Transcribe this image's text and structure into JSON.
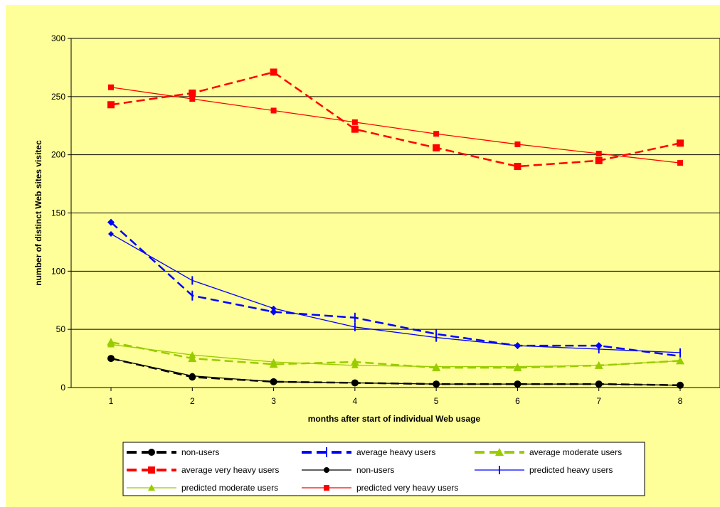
{
  "chart_data": {
    "type": "line",
    "title": "",
    "xlabel": "months after start of individual Web usage",
    "ylabel": "number of distinct Web sites visitec",
    "x": [
      1,
      2,
      3,
      4,
      5,
      6,
      7,
      8
    ],
    "x_ticks": [
      "1",
      "2",
      "3",
      "4",
      "5",
      "6",
      "7",
      "8"
    ],
    "ylim": [
      0,
      300
    ],
    "y_ticks": [
      "0",
      "50",
      "100",
      "150",
      "200",
      "250",
      "300"
    ],
    "grid": "horizontal",
    "legend_position": "bottom",
    "plot_background": "#ffff99",
    "series": [
      {
        "name": "non-users",
        "color": "#000000",
        "style": "dashed",
        "marker": "circle",
        "values": [
          25,
          9,
          5,
          4,
          3,
          3,
          3,
          2
        ]
      },
      {
        "name": "average heavy users",
        "color": "#0000ff",
        "style": "dashed",
        "marker": "plus",
        "values": [
          142,
          79,
          65,
          60,
          46,
          36,
          36,
          27
        ]
      },
      {
        "name": "average moderate users",
        "color": "#99cc00",
        "style": "dashed",
        "marker": "triangle",
        "values": [
          39,
          25,
          20,
          22,
          17,
          17,
          19,
          23
        ]
      },
      {
        "name": "average very heavy users",
        "color": "#ff0000",
        "style": "dashed",
        "marker": "square",
        "values": [
          243,
          253,
          271,
          222,
          206,
          190,
          195,
          210
        ]
      },
      {
        "name": "non-users",
        "color": "#000000",
        "style": "solid",
        "marker": "circle",
        "values": [
          25,
          10,
          5,
          4,
          3,
          3,
          3,
          2
        ]
      },
      {
        "name": "predicted heavy users",
        "color": "#0000ff",
        "style": "solid",
        "marker": "plus",
        "values": [
          132,
          92,
          68,
          52,
          43,
          36,
          33,
          30
        ]
      },
      {
        "name": "predicted moderate users",
        "color": "#99cc00",
        "style": "solid",
        "marker": "triangle",
        "values": [
          37,
          28,
          22,
          19,
          18,
          18,
          19,
          23
        ]
      },
      {
        "name": "predicted very heavy users",
        "color": "#ff0000",
        "style": "solid",
        "marker": "square",
        "values": [
          258,
          248,
          238,
          228,
          218,
          209,
          201,
          193
        ]
      }
    ]
  }
}
